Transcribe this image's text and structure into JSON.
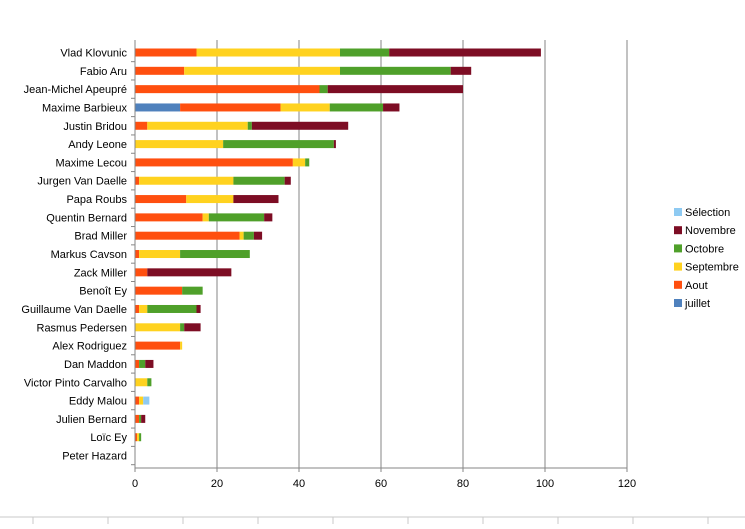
{
  "chart_data": {
    "type": "bar",
    "orientation": "horizontal",
    "stacked": true,
    "title": "",
    "xlabel": "",
    "ylabel": "",
    "xlim": [
      0,
      120
    ],
    "x_ticks": [
      "0",
      "20",
      "40",
      "60",
      "80",
      "100",
      "120"
    ],
    "grid": true,
    "legend_position": "right",
    "categories": [
      "Vlad Klovunic",
      "Fabio Aru",
      "Jean-Michel Apeupré",
      "Maxime Barbieux",
      "Justin Bridou",
      "Andy Leone",
      "Maxime Lecou",
      "Jurgen Van Daelle",
      "Papa Roubs",
      "Quentin Bernard",
      "Brad Miller",
      "Markus Cavson",
      "Zack Miller",
      "Benoît Ey",
      "Guillaume Van Daelle",
      "Rasmus Pedersen",
      "Alex Rodriguez",
      "Dan Maddon",
      "Victor Pinto Carvalho",
      "Eddy Malou",
      "Julien Bernard",
      "Loïc Ey",
      "Peter Hazard"
    ],
    "series": [
      {
        "name": "juillet",
        "color": "#4F81BD",
        "values": [
          0,
          0,
          0,
          11,
          0,
          0,
          0,
          0,
          0,
          0,
          0,
          0,
          0,
          0,
          0,
          0,
          0,
          0,
          0,
          0,
          0,
          0,
          0
        ]
      },
      {
        "name": "Aout",
        "color": "#FF4F0F",
        "values": [
          15,
          12,
          45,
          24.5,
          3,
          0,
          38.5,
          1,
          12.5,
          16.5,
          25.5,
          1,
          3,
          11.5,
          1,
          0,
          11,
          1,
          0,
          1,
          1,
          0.5,
          0
        ]
      },
      {
        "name": "Septembre",
        "color": "#FFD21F",
        "values": [
          35,
          38,
          0,
          12,
          24.5,
          21.5,
          3,
          23,
          11.5,
          1.5,
          1,
          10,
          0,
          0,
          2,
          11,
          0.5,
          0,
          3,
          1,
          0,
          0.5,
          0
        ]
      },
      {
        "name": "Octobre",
        "color": "#4FA02A",
        "values": [
          12,
          27,
          2,
          13,
          1,
          27,
          1,
          12.5,
          0,
          13.5,
          2.5,
          17,
          0,
          5,
          12,
          1,
          0,
          1.5,
          1,
          0,
          0.5,
          0.5,
          0
        ]
      },
      {
        "name": "Novembre",
        "color": "#7D0D24",
        "values": [
          37,
          5,
          33,
          4,
          23.5,
          0.5,
          0,
          1.5,
          11,
          2,
          2,
          0,
          20.5,
          0,
          1,
          4,
          0,
          2,
          0,
          0,
          1,
          0,
          0
        ]
      },
      {
        "name": "Sélection",
        "color": "#8ECAF2",
        "values": [
          0,
          0,
          0,
          0,
          0,
          0,
          0,
          0,
          0,
          0,
          0,
          0,
          0,
          0,
          0,
          0,
          0,
          0,
          0,
          1.5,
          0,
          0,
          0
        ]
      }
    ],
    "legend_order": [
      "Sélection",
      "Novembre",
      "Octobre",
      "Septembre",
      "Aout",
      "juillet"
    ]
  }
}
